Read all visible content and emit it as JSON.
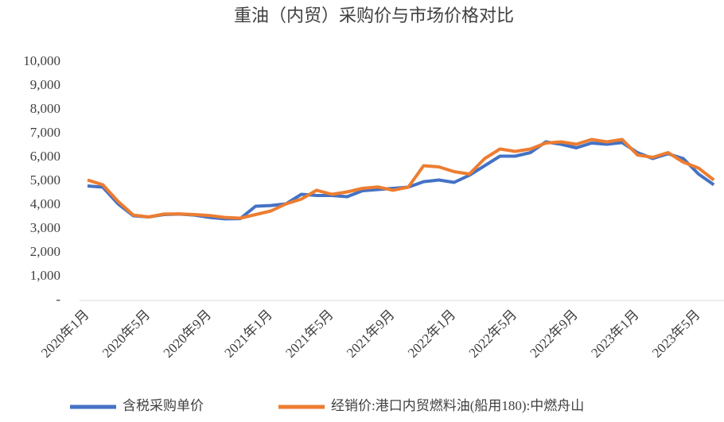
{
  "chart_data": {
    "type": "line",
    "title": "重油（内贸）采购价与市场价格对比",
    "categories": [
      "2020年1月",
      null,
      null,
      null,
      "2020年5月",
      null,
      null,
      null,
      "2020年9月",
      null,
      null,
      null,
      "2021年1月",
      null,
      null,
      null,
      "2021年5月",
      null,
      null,
      null,
      "2021年9月",
      null,
      null,
      null,
      "2022年1月",
      null,
      null,
      null,
      "2022年5月",
      null,
      null,
      null,
      "2022年9月",
      null,
      null,
      null,
      "2023年1月",
      null,
      null,
      null,
      "2023年5月",
      null
    ],
    "series": [
      {
        "name": "含税采购单价",
        "color": "#4472c4",
        "values": [
          4800,
          4750,
          4050,
          3550,
          3500,
          3600,
          3620,
          3580,
          3480,
          3420,
          3430,
          3950,
          3980,
          4050,
          4450,
          4400,
          4400,
          4350,
          4600,
          4650,
          4700,
          4750,
          4980,
          5050,
          4950,
          5250,
          5650,
          6050,
          6050,
          6200,
          6650,
          6550,
          6400,
          6600,
          6550,
          6620,
          6200,
          5950,
          6150,
          5950,
          5300,
          4850
        ]
      },
      {
        "name": "经销价:港口内贸燃料油(船用180):中燃舟山",
        "color": "#ed7d31",
        "values": [
          5050,
          4850,
          4150,
          3580,
          3500,
          3620,
          3630,
          3600,
          3560,
          3480,
          3450,
          3600,
          3750,
          4050,
          4250,
          4620,
          4450,
          4550,
          4700,
          4760,
          4620,
          4750,
          5650,
          5600,
          5400,
          5300,
          5950,
          6350,
          6250,
          6350,
          6600,
          6650,
          6550,
          6750,
          6650,
          6750,
          6100,
          6000,
          6200,
          5800,
          5550,
          5050
        ]
      }
    ],
    "ylim": [
      0,
      10000
    ],
    "yticks": [
      {
        "value": 0,
        "label": "-"
      },
      {
        "value": 1000,
        "label": "1,000"
      },
      {
        "value": 2000,
        "label": "2,000"
      },
      {
        "value": 3000,
        "label": "3,000"
      },
      {
        "value": 4000,
        "label": "4,000"
      },
      {
        "value": 5000,
        "label": "5,000"
      },
      {
        "value": 6000,
        "label": "6,000"
      },
      {
        "value": 7000,
        "label": "7,000"
      },
      {
        "value": 8000,
        "label": "8,000"
      },
      {
        "value": 9000,
        "label": "9,000"
      },
      {
        "value": 10000,
        "label": "10,000"
      }
    ],
    "grid": false,
    "legend": "bottom"
  }
}
